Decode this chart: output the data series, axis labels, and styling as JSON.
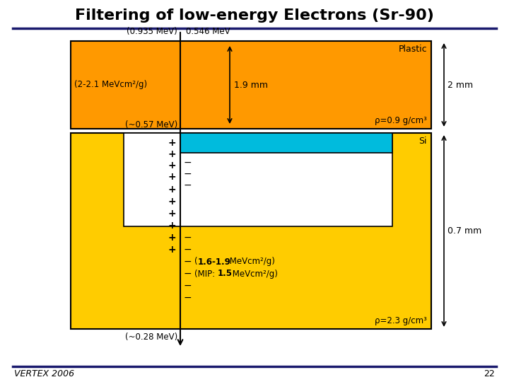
{
  "title": "Filtering of low-energy Electrons (Sr-90)",
  "title_fontsize": 16,
  "title_fontweight": "bold",
  "bg_color": "#ffffff",
  "fig_width": 7.2,
  "fig_height": 5.4,
  "dpi": 100,
  "orange_color": "#FF9900",
  "yellow_color": "#FFCC00",
  "cyan_color": "#00BBDD",
  "white_color": "#FFFFFF",
  "dark_blue": "#1a1a6e",
  "footer_text": "VERTEX 2006",
  "page_num": "22",
  "label_0935": "(0.935 MeV)",
  "label_0546": "0.546 MeV",
  "label_plastic": "Plastic",
  "label_2mm": "2 mm",
  "label_19mm": "1.9 mm",
  "label_rho09": "ρ=0.9 g/cm³",
  "label_057": "(~0.57 MeV)",
  "label_Si": "Si",
  "label_07mm": "0.7 mm",
  "label_028": "(~0.28 MeV)",
  "label_rho23": "ρ=2.3 g/cm³",
  "label_dEdx": "(2-2.1 MeVcm²/g)"
}
